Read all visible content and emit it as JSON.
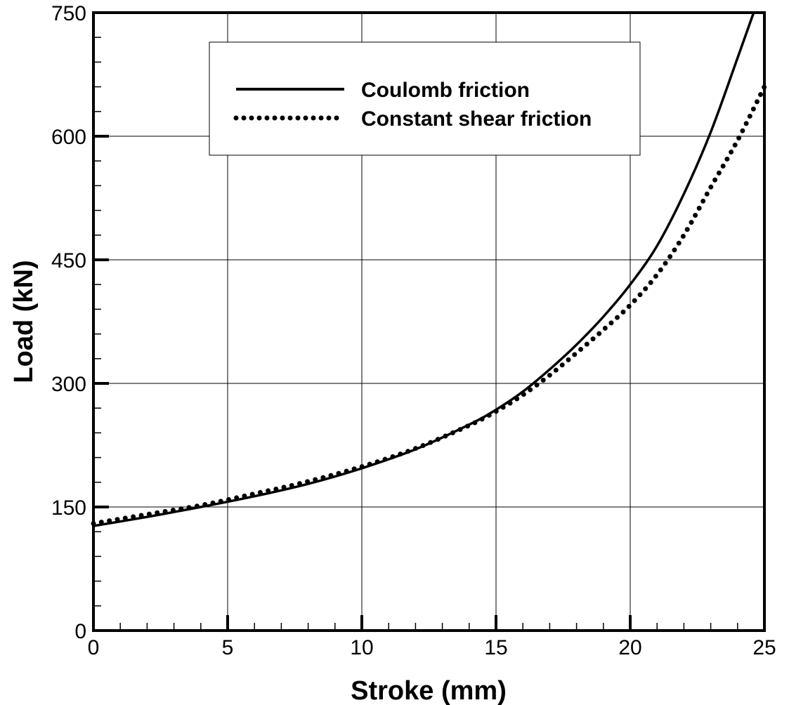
{
  "chart_data": {
    "type": "line",
    "xlabel": "Stroke (mm)",
    "ylabel": "Load (kN)",
    "xlim": [
      0,
      25
    ],
    "ylim": [
      0,
      750
    ],
    "xticks": [
      0,
      5,
      10,
      15,
      20,
      25
    ],
    "yticks": [
      0,
      150,
      300,
      450,
      600,
      750
    ],
    "grid": true,
    "legend_position": "top",
    "series": [
      {
        "name": "Coulomb friction",
        "style": "solid",
        "x": [
          0,
          2,
          4,
          6,
          8,
          10,
          12,
          14,
          15,
          16,
          17,
          18,
          19,
          20,
          21,
          22,
          23,
          24,
          24.6
        ],
        "y": [
          127,
          138,
          150,
          163,
          178,
          197,
          220,
          250,
          268,
          290,
          317,
          347,
          381,
          420,
          467,
          530,
          605,
          695,
          750
        ]
      },
      {
        "name": "Constant shear friction",
        "style": "dotted",
        "x": [
          0,
          2,
          4,
          6,
          8,
          10,
          12,
          14,
          15,
          16,
          17,
          18,
          19,
          20,
          21,
          22,
          23,
          24,
          25
        ],
        "y": [
          130,
          141,
          152,
          166,
          181,
          199,
          221,
          249,
          266,
          286,
          310,
          337,
          365,
          395,
          432,
          480,
          538,
          595,
          660
        ]
      }
    ]
  }
}
